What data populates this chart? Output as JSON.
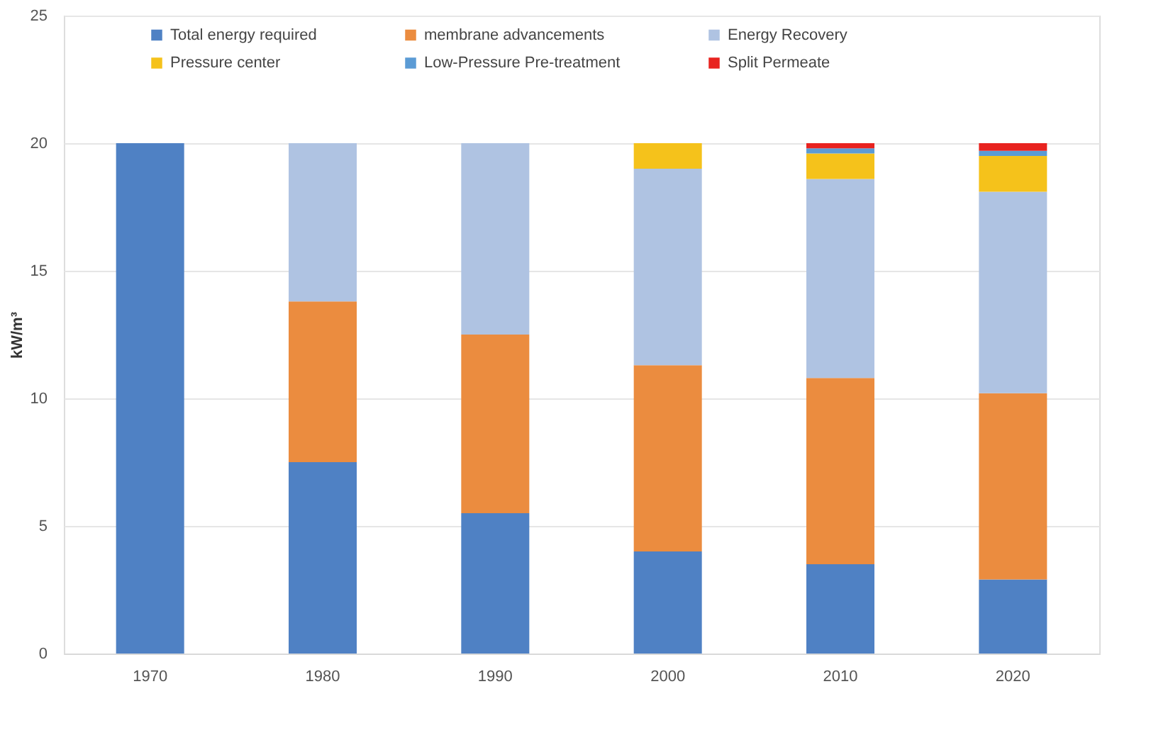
{
  "chart_data": {
    "type": "bar",
    "stacked": true,
    "ylabel": "kW/m³",
    "categories": [
      "1970",
      "1980",
      "1990",
      "2000",
      "2010",
      "2020"
    ],
    "series": [
      {
        "name": "Total energy required",
        "color": "#4f81c4",
        "values": [
          20,
          7.5,
          5.5,
          4,
          3.5,
          2.9
        ]
      },
      {
        "name": "membrane advancements",
        "color": "#eb8c3f",
        "values": [
          null,
          6.3,
          7.0,
          7.3,
          7.3,
          7.3
        ]
      },
      {
        "name": "Energy Recovery",
        "color": "#afc3e2",
        "values": [
          null,
          6.2,
          7.5,
          7.7,
          7.8,
          7.9
        ]
      },
      {
        "name": "Pressure center",
        "color": "#f5c21b",
        "values": [
          null,
          null,
          null,
          1.0,
          1.0,
          1.4
        ]
      },
      {
        "name": "Low-Pressure Pre-treatment",
        "color": "#5b9bd5",
        "values": [
          null,
          null,
          null,
          null,
          0.2,
          0.2
        ]
      },
      {
        "name": "Split Permeate",
        "color": "#e8231f",
        "values": [
          null,
          null,
          null,
          null,
          0.2,
          0.3
        ]
      }
    ],
    "ylim": [
      0,
      25
    ],
    "yticks": [
      0,
      5,
      10,
      15,
      20,
      25
    ],
    "grid": "y",
    "legend": "top"
  }
}
